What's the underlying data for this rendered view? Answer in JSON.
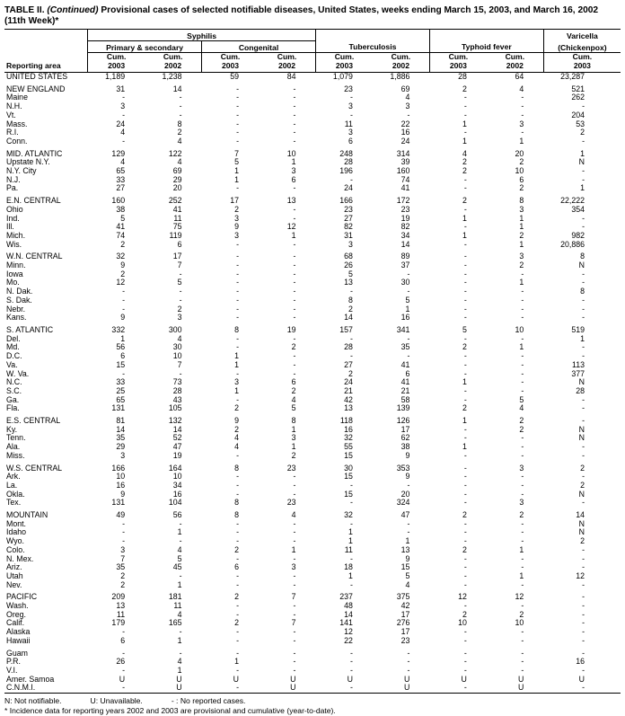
{
  "title": {
    "prefix": "TABLE II. ",
    "italic": "(Continued)",
    "rest": " Provisional cases of selected notifiable diseases, United States, weeks ending March 15, 2003, and March 16, 2002",
    "line2": "(11th Week)*"
  },
  "table": {
    "area_header": "Reporting area",
    "groups_header": {
      "syphilis": "Syphilis",
      "primary_secondary": "Primary & secondary",
      "congenital": "Congenital",
      "tuberculosis": "Tuberculosis",
      "typhoid": "Typhoid fever",
      "varicella_l1": "Varicella",
      "varicella_l2": "(Chickenpox)"
    },
    "cols": [
      {
        "l1": "Cum.",
        "l2": "2003"
      },
      {
        "l1": "Cum.",
        "l2": "2002"
      },
      {
        "l1": "Cum.",
        "l2": "2003"
      },
      {
        "l1": "Cum.",
        "l2": "2002"
      },
      {
        "l1": "Cum.",
        "l2": "2003"
      },
      {
        "l1": "Cum.",
        "l2": "2002"
      },
      {
        "l1": "Cum.",
        "l2": "2003"
      },
      {
        "l1": "Cum.",
        "l2": "2002"
      },
      {
        "l1": "Cum.",
        "l2": "2003"
      }
    ],
    "row_groups": [
      [
        {
          "a": "UNITED STATES",
          "v": [
            "1,189",
            "1,238",
            "59",
            "84",
            "1,079",
            "1,886",
            "28",
            "64",
            "23,287"
          ]
        }
      ],
      [
        {
          "a": "NEW ENGLAND",
          "v": [
            "31",
            "14",
            "-",
            "-",
            "23",
            "69",
            "2",
            "4",
            "521"
          ]
        },
        {
          "a": "Maine",
          "v": [
            "-",
            "-",
            "-",
            "-",
            "-",
            "4",
            "-",
            "-",
            "262"
          ]
        },
        {
          "a": "N.H.",
          "v": [
            "3",
            "-",
            "-",
            "-",
            "3",
            "3",
            "-",
            "-",
            "-"
          ]
        },
        {
          "a": "Vt.",
          "v": [
            "-",
            "-",
            "-",
            "-",
            "-",
            "-",
            "-",
            "-",
            "204"
          ]
        },
        {
          "a": "Mass.",
          "v": [
            "24",
            "8",
            "-",
            "-",
            "11",
            "22",
            "1",
            "3",
            "53"
          ]
        },
        {
          "a": "R.I.",
          "v": [
            "4",
            "2",
            "-",
            "-",
            "3",
            "16",
            "-",
            "-",
            "2"
          ]
        },
        {
          "a": "Conn.",
          "v": [
            "-",
            "4",
            "-",
            "-",
            "6",
            "24",
            "1",
            "1",
            "-"
          ]
        }
      ],
      [
        {
          "a": "MID. ATLANTIC",
          "v": [
            "129",
            "122",
            "7",
            "10",
            "248",
            "314",
            "4",
            "20",
            "1"
          ]
        },
        {
          "a": "Upstate N.Y.",
          "v": [
            "4",
            "4",
            "5",
            "1",
            "28",
            "39",
            "2",
            "2",
            "N"
          ]
        },
        {
          "a": "N.Y. City",
          "v": [
            "65",
            "69",
            "1",
            "3",
            "196",
            "160",
            "2",
            "10",
            "-"
          ]
        },
        {
          "a": "N.J.",
          "v": [
            "33",
            "29",
            "1",
            "6",
            "-",
            "74",
            "-",
            "6",
            "-"
          ]
        },
        {
          "a": "Pa.",
          "v": [
            "27",
            "20",
            "-",
            "-",
            "24",
            "41",
            "-",
            "2",
            "1"
          ]
        }
      ],
      [
        {
          "a": "E.N. CENTRAL",
          "v": [
            "160",
            "252",
            "17",
            "13",
            "166",
            "172",
            "2",
            "8",
            "22,222"
          ]
        },
        {
          "a": "Ohio",
          "v": [
            "38",
            "41",
            "2",
            "-",
            "23",
            "23",
            "-",
            "3",
            "354"
          ]
        },
        {
          "a": "Ind.",
          "v": [
            "5",
            "11",
            "3",
            "-",
            "27",
            "19",
            "1",
            "1",
            "-"
          ]
        },
        {
          "a": "Ill.",
          "v": [
            "41",
            "75",
            "9",
            "12",
            "82",
            "82",
            "-",
            "1",
            "-"
          ]
        },
        {
          "a": "Mich.",
          "v": [
            "74",
            "119",
            "3",
            "1",
            "31",
            "34",
            "1",
            "2",
            "982"
          ]
        },
        {
          "a": "Wis.",
          "v": [
            "2",
            "6",
            "-",
            "-",
            "3",
            "14",
            "-",
            "1",
            "20,886"
          ]
        }
      ],
      [
        {
          "a": "W.N. CENTRAL",
          "v": [
            "32",
            "17",
            "-",
            "-",
            "68",
            "89",
            "-",
            "3",
            "8"
          ]
        },
        {
          "a": "Minn.",
          "v": [
            "9",
            "7",
            "-",
            "-",
            "26",
            "37",
            "-",
            "2",
            "N"
          ]
        },
        {
          "a": "Iowa",
          "v": [
            "2",
            "-",
            "-",
            "-",
            "5",
            "-",
            "-",
            "-",
            "-"
          ]
        },
        {
          "a": "Mo.",
          "v": [
            "12",
            "5",
            "-",
            "-",
            "13",
            "30",
            "-",
            "1",
            "-"
          ]
        },
        {
          "a": "N. Dak.",
          "v": [
            "-",
            "-",
            "-",
            "-",
            "-",
            "-",
            "-",
            "-",
            "8"
          ]
        },
        {
          "a": "S. Dak.",
          "v": [
            "-",
            "-",
            "-",
            "-",
            "8",
            "5",
            "-",
            "-",
            "-"
          ]
        },
        {
          "a": "Nebr.",
          "v": [
            "-",
            "2",
            "-",
            "-",
            "2",
            "1",
            "-",
            "-",
            "-"
          ]
        },
        {
          "a": "Kans.",
          "v": [
            "9",
            "3",
            "-",
            "-",
            "14",
            "16",
            "-",
            "-",
            "-"
          ]
        }
      ],
      [
        {
          "a": "S. ATLANTIC",
          "v": [
            "332",
            "300",
            "8",
            "19",
            "157",
            "341",
            "5",
            "10",
            "519"
          ]
        },
        {
          "a": "Del.",
          "v": [
            "1",
            "4",
            "-",
            "-",
            "-",
            "-",
            "-",
            "-",
            "1"
          ]
        },
        {
          "a": "Md.",
          "v": [
            "56",
            "30",
            "-",
            "2",
            "28",
            "35",
            "2",
            "1",
            "-"
          ]
        },
        {
          "a": "D.C.",
          "v": [
            "6",
            "10",
            "1",
            "-",
            "-",
            "-",
            "-",
            "-",
            "-"
          ]
        },
        {
          "a": "Va.",
          "v": [
            "15",
            "7",
            "1",
            "-",
            "27",
            "41",
            "-",
            "-",
            "113"
          ]
        },
        {
          "a": "W. Va.",
          "v": [
            "-",
            "-",
            "-",
            "-",
            "2",
            "6",
            "-",
            "-",
            "377"
          ]
        },
        {
          "a": "N.C.",
          "v": [
            "33",
            "73",
            "3",
            "6",
            "24",
            "41",
            "1",
            "-",
            "N"
          ]
        },
        {
          "a": "S.C.",
          "v": [
            "25",
            "28",
            "1",
            "2",
            "21",
            "21",
            "-",
            "-",
            "28"
          ]
        },
        {
          "a": "Ga.",
          "v": [
            "65",
            "43",
            "-",
            "4",
            "42",
            "58",
            "-",
            "5",
            "-"
          ]
        },
        {
          "a": "Fla.",
          "v": [
            "131",
            "105",
            "2",
            "5",
            "13",
            "139",
            "2",
            "4",
            "-"
          ]
        }
      ],
      [
        {
          "a": "E.S. CENTRAL",
          "v": [
            "81",
            "132",
            "9",
            "8",
            "118",
            "126",
            "1",
            "2",
            "-"
          ]
        },
        {
          "a": "Ky.",
          "v": [
            "14",
            "14",
            "2",
            "1",
            "16",
            "17",
            "-",
            "2",
            "N"
          ]
        },
        {
          "a": "Tenn.",
          "v": [
            "35",
            "52",
            "4",
            "3",
            "32",
            "62",
            "-",
            "-",
            "N"
          ]
        },
        {
          "a": "Ala.",
          "v": [
            "29",
            "47",
            "4",
            "1",
            "55",
            "38",
            "1",
            "-",
            "-"
          ]
        },
        {
          "a": "Miss.",
          "v": [
            "3",
            "19",
            "-",
            "2",
            "15",
            "9",
            "-",
            "-",
            "-"
          ]
        }
      ],
      [
        {
          "a": "W.S. CENTRAL",
          "v": [
            "166",
            "164",
            "8",
            "23",
            "30",
            "353",
            "-",
            "3",
            "2"
          ]
        },
        {
          "a": "Ark.",
          "v": [
            "10",
            "10",
            "-",
            "-",
            "15",
            "9",
            "-",
            "-",
            "-"
          ]
        },
        {
          "a": "La.",
          "v": [
            "16",
            "34",
            "-",
            "-",
            "-",
            "-",
            "-",
            "-",
            "2"
          ]
        },
        {
          "a": "Okla.",
          "v": [
            "9",
            "16",
            "-",
            "-",
            "15",
            "20",
            "-",
            "-",
            "N"
          ]
        },
        {
          "a": "Tex.",
          "v": [
            "131",
            "104",
            "8",
            "23",
            "-",
            "324",
            "-",
            "3",
            "-"
          ]
        }
      ],
      [
        {
          "a": "MOUNTAIN",
          "v": [
            "49",
            "56",
            "8",
            "4",
            "32",
            "47",
            "2",
            "2",
            "14"
          ]
        },
        {
          "a": "Mont.",
          "v": [
            "-",
            "-",
            "-",
            "-",
            "-",
            "-",
            "-",
            "-",
            "N"
          ]
        },
        {
          "a": "Idaho",
          "v": [
            "-",
            "1",
            "-",
            "-",
            "1",
            "-",
            "-",
            "-",
            "N"
          ]
        },
        {
          "a": "Wyo.",
          "v": [
            "-",
            "-",
            "-",
            "-",
            "1",
            "1",
            "-",
            "-",
            "2"
          ]
        },
        {
          "a": "Colo.",
          "v": [
            "3",
            "4",
            "2",
            "1",
            "11",
            "13",
            "2",
            "1",
            "-"
          ]
        },
        {
          "a": "N. Mex.",
          "v": [
            "7",
            "5",
            "-",
            "-",
            "-",
            "9",
            "-",
            "-",
            "-"
          ]
        },
        {
          "a": "Ariz.",
          "v": [
            "35",
            "45",
            "6",
            "3",
            "18",
            "15",
            "-",
            "-",
            "-"
          ]
        },
        {
          "a": "Utah",
          "v": [
            "2",
            "-",
            "-",
            "-",
            "1",
            "5",
            "-",
            "1",
            "12"
          ]
        },
        {
          "a": "Nev.",
          "v": [
            "2",
            "1",
            "-",
            "-",
            "-",
            "4",
            "-",
            "-",
            "-"
          ]
        }
      ],
      [
        {
          "a": "PACIFIC",
          "v": [
            "209",
            "181",
            "2",
            "7",
            "237",
            "375",
            "12",
            "12",
            "-"
          ]
        },
        {
          "a": "Wash.",
          "v": [
            "13",
            "11",
            "-",
            "-",
            "48",
            "42",
            "-",
            "-",
            "-"
          ]
        },
        {
          "a": "Oreg.",
          "v": [
            "11",
            "4",
            "-",
            "-",
            "14",
            "17",
            "2",
            "2",
            "-"
          ]
        },
        {
          "a": "Calif.",
          "v": [
            "179",
            "165",
            "2",
            "7",
            "141",
            "276",
            "10",
            "10",
            "-"
          ]
        },
        {
          "a": "Alaska",
          "v": [
            "-",
            "-",
            "-",
            "-",
            "12",
            "17",
            "-",
            "-",
            "-"
          ]
        },
        {
          "a": "Hawaii",
          "v": [
            "6",
            "1",
            "-",
            "-",
            "22",
            "23",
            "-",
            "-",
            "-"
          ]
        }
      ],
      [
        {
          "a": "Guam",
          "v": [
            "-",
            "-",
            "-",
            "-",
            "-",
            "-",
            "-",
            "-",
            "-"
          ]
        },
        {
          "a": "P.R.",
          "v": [
            "26",
            "4",
            "1",
            "-",
            "-",
            "-",
            "-",
            "-",
            "16"
          ]
        },
        {
          "a": "V.I.",
          "v": [
            "-",
            "1",
            "-",
            "-",
            "-",
            "-",
            "-",
            "-",
            "-"
          ]
        },
        {
          "a": "Amer. Samoa",
          "v": [
            "U",
            "U",
            "U",
            "U",
            "U",
            "U",
            "U",
            "U",
            "U"
          ]
        },
        {
          "a": "C.N.M.I.",
          "v": [
            "-",
            "U",
            "-",
            "U",
            "-",
            "U",
            "-",
            "U",
            "-"
          ]
        }
      ]
    ]
  },
  "footnotes": {
    "n": "N: Not notifiable.",
    "u": "U: Unavailable.",
    "dash": "- : No reported cases.",
    "line2": "* Incidence data for reporting years 2002 and 2003 are provisional and cumulative (year-to-date)."
  }
}
